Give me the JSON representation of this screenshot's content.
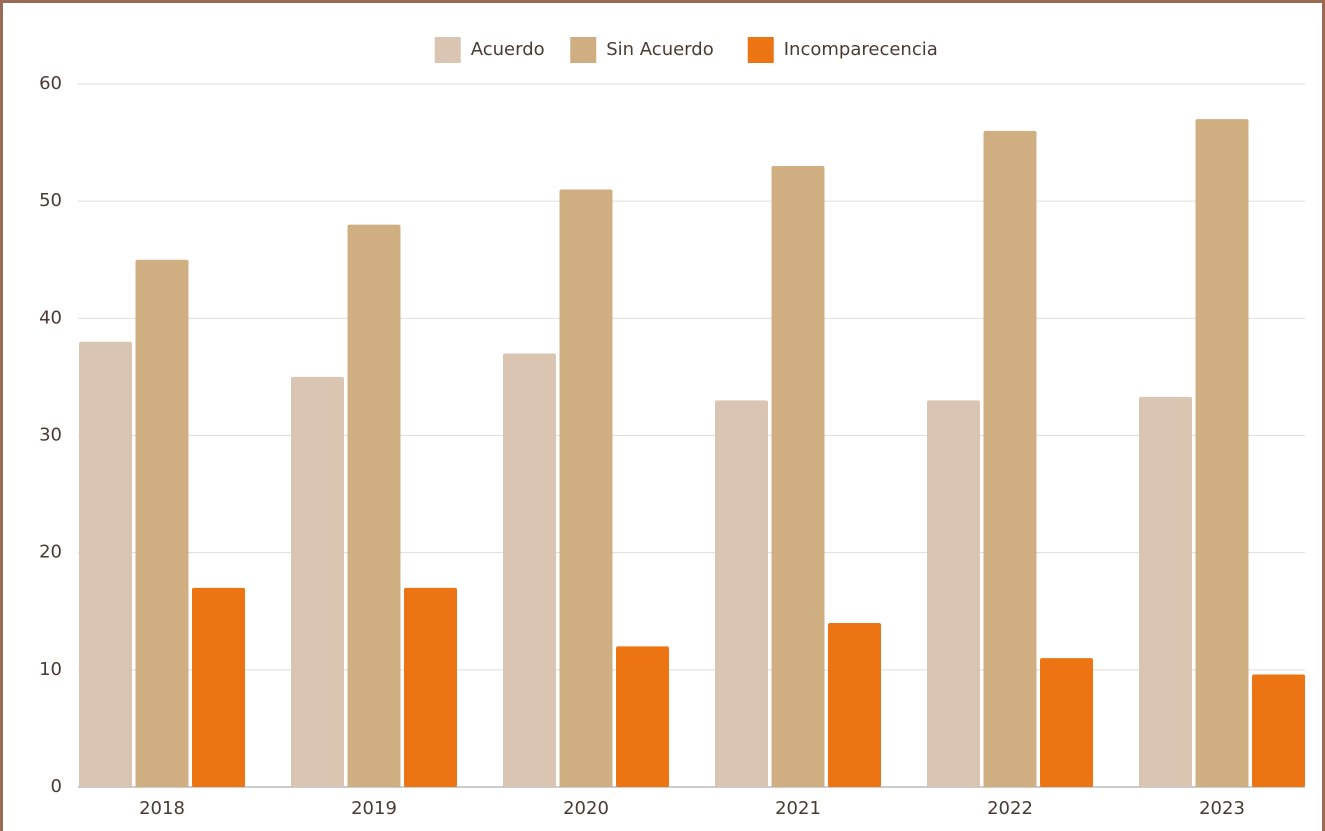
{
  "chart_data": {
    "type": "bar",
    "categories": [
      "2018",
      "2019",
      "2020",
      "2021",
      "2022",
      "2023"
    ],
    "series": [
      {
        "name": "Acuerdo",
        "color": "#d9c5b2",
        "values": [
          38,
          35,
          37,
          33,
          33,
          33.3
        ]
      },
      {
        "name": "Sin Acuerdo",
        "color": "#cfae82",
        "values": [
          45,
          48,
          51,
          53,
          56,
          57
        ]
      },
      {
        "name": "Incomparecencia",
        "color": "#ec7412",
        "values": [
          17,
          17,
          12,
          14,
          11,
          9.6
        ]
      }
    ],
    "ylim": [
      0,
      60
    ],
    "yticks": [
      0,
      10,
      20,
      30,
      40,
      50,
      60
    ],
    "grid": true,
    "legend": "top"
  }
}
